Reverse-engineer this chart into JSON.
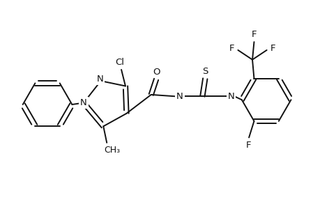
{
  "bg_color": "#ffffff",
  "line_color": "#111111",
  "line_width": 1.4,
  "font_size": 9.5,
  "fig_width": 4.6,
  "fig_height": 3.0,
  "dpi": 100,
  "xlim": [
    0,
    9.2
  ],
  "ylim": [
    0,
    6.0
  ]
}
